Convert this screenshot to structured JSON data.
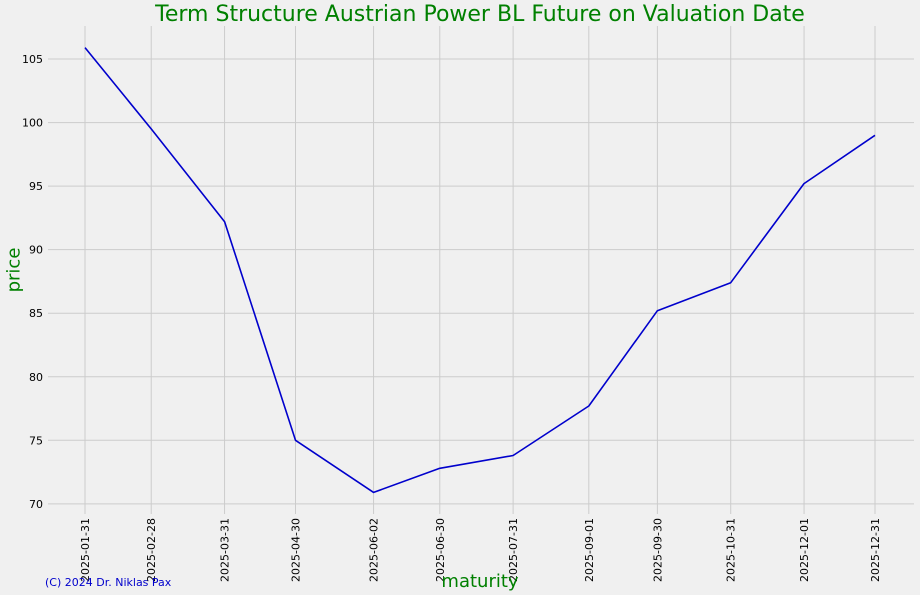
{
  "chart_data": {
    "type": "line",
    "title": "Term Structure Austrian Power BL Future on Valuation Date",
    "xlabel": "maturity",
    "ylabel": "price",
    "categories": [
      "2025-01-31",
      "2025-02-28",
      "2025-03-31",
      "2025-04-30",
      "2025-06-02",
      "2025-06-30",
      "2025-07-31",
      "2025-09-01",
      "2025-09-30",
      "2025-10-31",
      "2025-12-01",
      "2025-12-31"
    ],
    "series": [
      {
        "values": [
          105.9,
          99.5,
          92.2,
          75.0,
          70.9,
          72.8,
          73.8,
          77.7,
          85.2,
          87.4,
          95.2,
          99.0
        ]
      }
    ],
    "yticks": [
      70,
      75,
      80,
      85,
      90,
      95,
      100,
      105
    ],
    "ylim": [
      69.2,
      107.6
    ],
    "grid": true,
    "colors": {
      "line": "#0000cc",
      "text_accent": "#008000",
      "grid": "#cccccc",
      "background": "#f0f0f0"
    }
  },
  "footer": {
    "copyright": "(C) 2024 Dr. Niklas Pax"
  }
}
